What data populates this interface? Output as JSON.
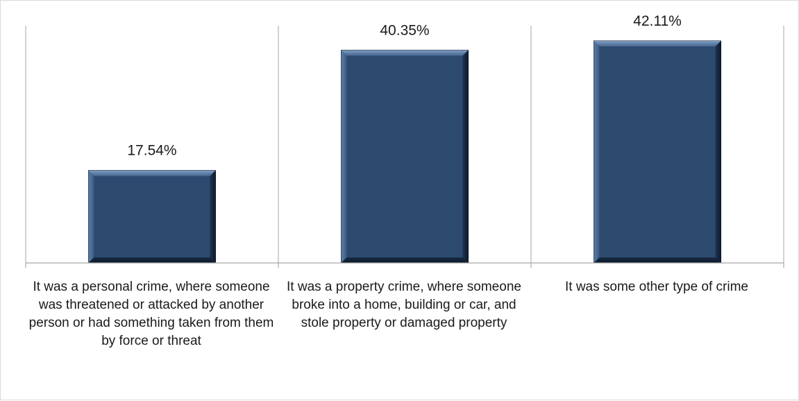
{
  "chart_data": {
    "type": "bar",
    "categories": [
      "It was a personal crime, where someone was threatened or attacked by another person or had something taken from them by force or threat",
      "It was a property crime, where someone broke into a home, building or car, and stole property or damaged property",
      "It was some other type of crime"
    ],
    "values": [
      17.54,
      40.35,
      42.11
    ],
    "data_labels": [
      "17.54%",
      "40.35%",
      "42.11%"
    ],
    "ylim": [
      0,
      50
    ],
    "grid": false,
    "legend": "none",
    "colors": {
      "bar": "#2c4a6e",
      "bar_highlight": "#5f82aa",
      "bar_shadow": "#0f1f33",
      "axis": "#a6a6a6"
    }
  }
}
